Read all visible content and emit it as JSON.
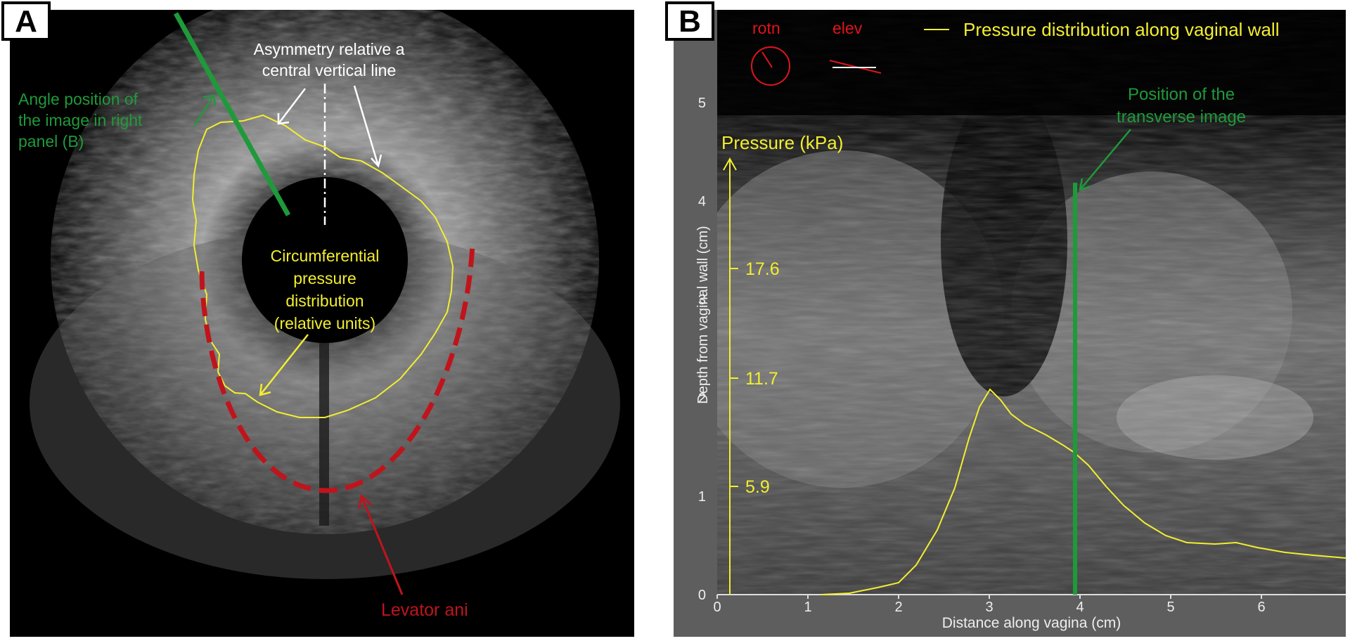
{
  "panel_a": {
    "letter": "A",
    "labels": {
      "angle_line1": "Angle position of",
      "angle_line2": "the image in right",
      "angle_line3": "panel (B)",
      "asym_line1": "Asymmetry relative a",
      "asym_line2": "central vertical line",
      "circ_line1": "Circumferential",
      "circ_line2": "pressure",
      "circ_line3": "distribution",
      "circ_line4": "(relative units)",
      "levator": "Levator ani"
    }
  },
  "panel_b": {
    "letter": "B",
    "rotn_label": "rotn",
    "elev_label": "elev",
    "legend_label": "Pressure distribution along vaginal wall",
    "position_line1": "Position of the",
    "position_line2": "transverse image",
    "pressure_axis_title": "Pressure (kPa)",
    "pressure_ticks": [
      "17.6",
      "11.7",
      "5.9"
    ],
    "y_axis_title": "Depth from vaginal wall (cm)",
    "x_axis_title": "Distance along vagina (cm)",
    "y_ticks": [
      "0",
      "1",
      "2",
      "3",
      "4",
      "5"
    ],
    "x_ticks": [
      "0",
      "1",
      "2",
      "3",
      "4",
      "5",
      "6"
    ]
  },
  "colors": {
    "green": "#1f9a3a",
    "yellow": "#f2ee30",
    "red": "#c0141c",
    "white": "#ffffff"
  }
}
